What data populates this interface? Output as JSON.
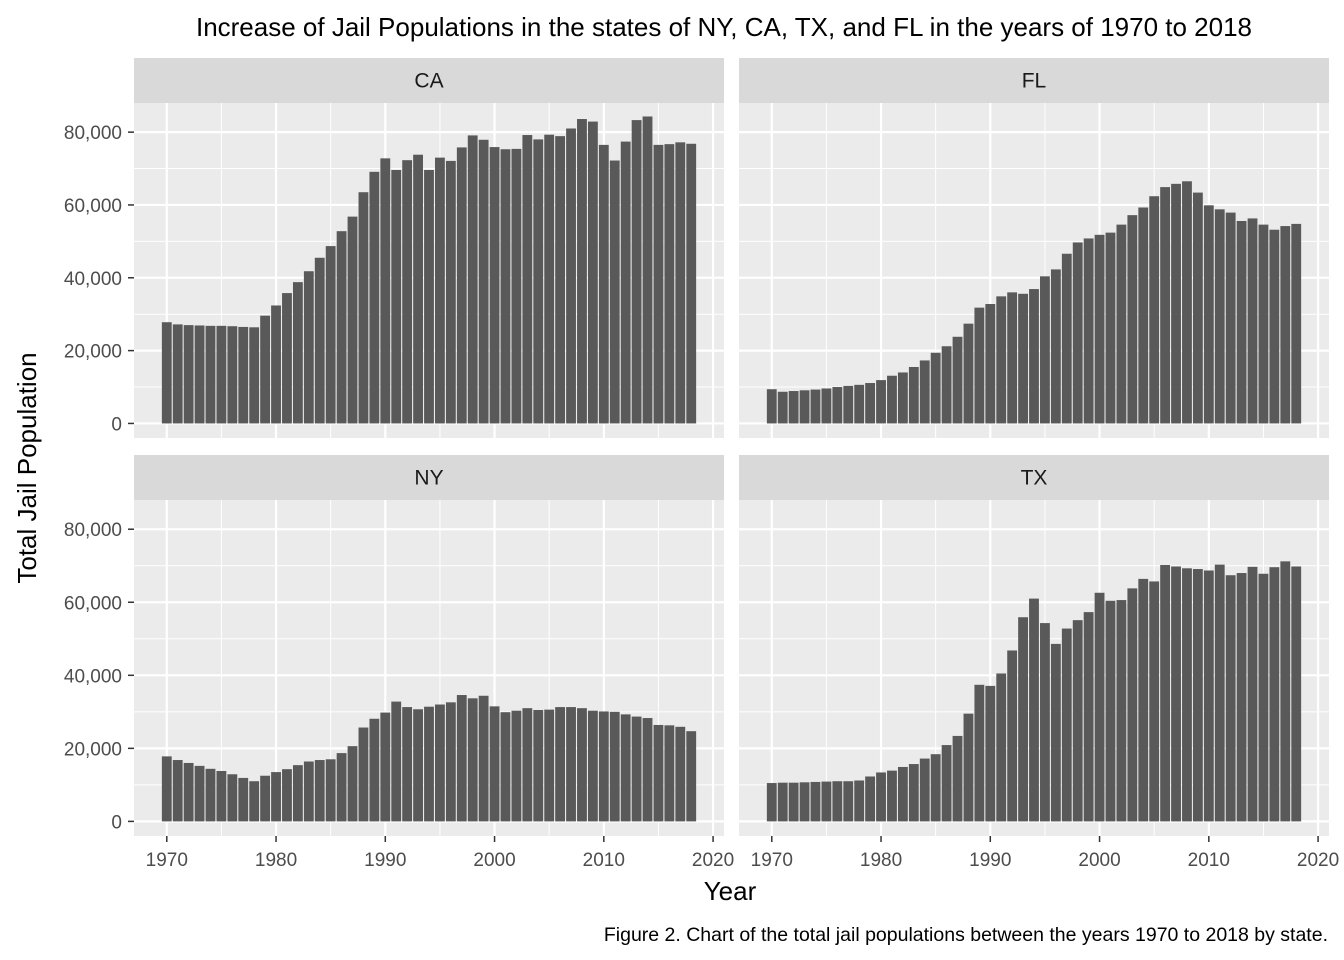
{
  "chart_data": {
    "type": "bar",
    "title": "Increase of Jail Populations in the states of NY, CA, TX, and FL in the years of 1970 to 2018",
    "xlabel": "Year",
    "ylabel": "Total Jail Population",
    "caption": "Figure 2. Chart of the total jail populations between the years 1970 to 2018 by state.",
    "xlim": [
      1967,
      2021
    ],
    "ylim": [
      -4000,
      88000
    ],
    "x_ticks": [
      1970,
      1980,
      1990,
      2000,
      2010,
      2020
    ],
    "x_tick_labels": [
      "1970",
      "1980",
      "1990",
      "2000",
      "2010",
      "2020"
    ],
    "y_ticks": [
      0,
      20000,
      40000,
      60000,
      80000
    ],
    "y_tick_labels": [
      "0",
      "20,000",
      "40,000",
      "60,000",
      "80,000"
    ],
    "grid": true,
    "facets": [
      {
        "name": "CA",
        "start_year": 1970,
        "values": [
          27800,
          27200,
          27000,
          26900,
          26800,
          26800,
          26700,
          26500,
          26400,
          29600,
          32400,
          35800,
          38800,
          41800,
          45500,
          48700,
          52800,
          56800,
          63500,
          69100,
          72800,
          69600,
          72300,
          73800,
          69600,
          73000,
          72100,
          75800,
          79100,
          77900,
          75900,
          75300,
          75400,
          79200,
          78000,
          79300,
          78900,
          81000,
          83600,
          82900,
          76500,
          72200,
          77400,
          83300,
          84300,
          76500,
          76700,
          77200,
          76800
        ]
      },
      {
        "name": "FL",
        "start_year": 1970,
        "values": [
          9400,
          8700,
          8900,
          9100,
          9300,
          9600,
          10000,
          10300,
          10600,
          11100,
          11900,
          13100,
          14000,
          15500,
          17300,
          19400,
          21200,
          23800,
          27400,
          31800,
          32800,
          34900,
          36000,
          35600,
          36900,
          40400,
          42300,
          46600,
          49700,
          50800,
          51800,
          52400,
          54600,
          57200,
          59300,
          62400,
          64900,
          65800,
          66500,
          63400,
          59900,
          58800,
          57900,
          55600,
          56300,
          54600,
          53200,
          54200,
          54800
        ]
      },
      {
        "name": "NY",
        "start_year": 1970,
        "values": [
          17800,
          16800,
          16000,
          15200,
          14400,
          13800,
          12900,
          11900,
          11000,
          12500,
          13500,
          14300,
          15400,
          16400,
          16800,
          17000,
          18700,
          20600,
          25700,
          28100,
          29800,
          32800,
          31300,
          30700,
          31400,
          32000,
          32600,
          34600,
          33700,
          34400,
          31500,
          29900,
          30300,
          31000,
          30500,
          30600,
          31300,
          31300,
          31000,
          30300,
          30100,
          30000,
          29300,
          28700,
          28300,
          26400,
          26300,
          25900,
          24700
        ]
      },
      {
        "name": "TX",
        "start_year": 1970,
        "values": [
          10500,
          10600,
          10600,
          10700,
          10800,
          10900,
          11000,
          11000,
          11200,
          12300,
          13400,
          13900,
          14900,
          15700,
          17200,
          18400,
          20900,
          23400,
          29500,
          37400,
          37100,
          40500,
          46800,
          55900,
          61000,
          54300,
          48600,
          52800,
          55100,
          57300,
          62600,
          60400,
          60600,
          63800,
          66400,
          65700,
          70200,
          69800,
          69300,
          69100,
          68700,
          70300,
          67400,
          68000,
          69700,
          67800,
          69600,
          71200,
          69800
        ]
      }
    ]
  }
}
